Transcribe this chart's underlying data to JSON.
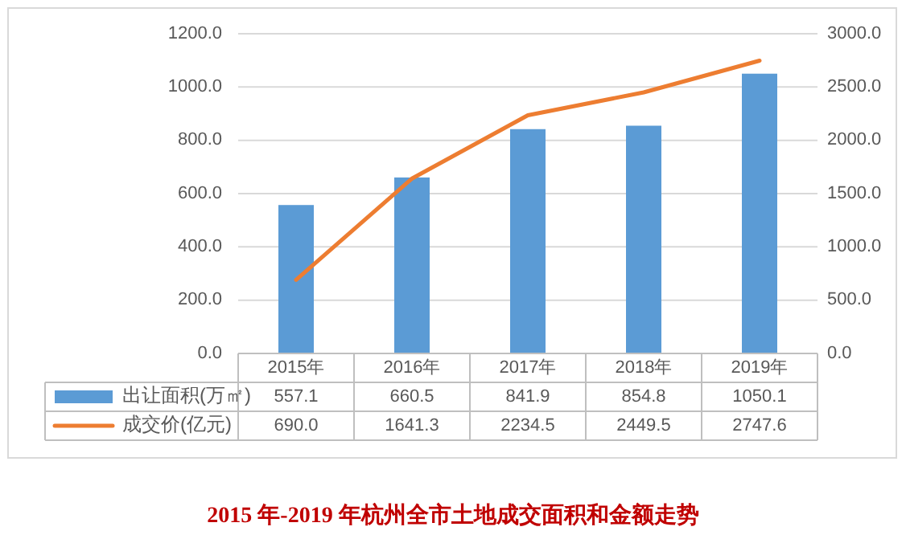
{
  "chart_data": {
    "type": "bar",
    "title": "2015 年-2019 年杭州全市土地成交面积和金额走势",
    "categories": [
      "2015年",
      "2016年",
      "2017年",
      "2018年",
      "2019年"
    ],
    "series": [
      {
        "name": "出让面积(万㎡)",
        "color": "#5b9bd5",
        "values": [
          557.1,
          660.5,
          841.9,
          854.8,
          1050.1
        ],
        "value_labels": [
          "557.1",
          "660.5",
          "841.9",
          "854.8",
          "1050.1"
        ]
      },
      {
        "name": "成交价(亿元)",
        "type": "line",
        "axis": "y2",
        "color": "#ed7d31",
        "values": [
          690.0,
          1641.3,
          2234.5,
          2449.5,
          2747.6
        ],
        "value_labels": [
          "690.0",
          "1641.3",
          "2234.5",
          "2449.5",
          "2747.6"
        ]
      }
    ],
    "ylim": [
      0,
      1200
    ],
    "yticks": [
      {
        "value": 0,
        "label": "0.0"
      },
      {
        "value": 200,
        "label": "200.0"
      },
      {
        "value": 400,
        "label": "400.0"
      },
      {
        "value": 600,
        "label": "600.0"
      },
      {
        "value": 800,
        "label": "800.0"
      },
      {
        "value": 1000,
        "label": "1000.0"
      },
      {
        "value": 1200,
        "label": "1200.0"
      }
    ],
    "y2lim": [
      0,
      3000
    ],
    "y2ticks": [
      {
        "value": 0,
        "label": "0.0"
      },
      {
        "value": 500,
        "label": "500.0"
      },
      {
        "value": 1000,
        "label": "1000.0"
      },
      {
        "value": 1500,
        "label": "1500.0"
      },
      {
        "value": 2000,
        "label": "2000.0"
      },
      {
        "value": 2500,
        "label": "2500.0"
      },
      {
        "value": 3000,
        "label": "3000.0"
      }
    ],
    "grid": "y",
    "legend": "bottom"
  }
}
